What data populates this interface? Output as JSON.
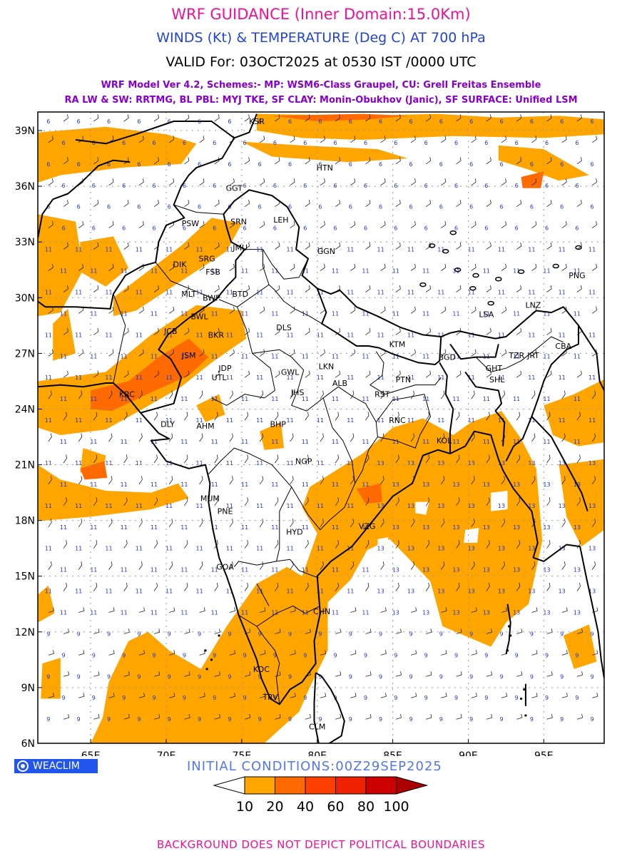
{
  "header": {
    "title": "WRF GUIDANCE (Inner Domain:15.0Km)",
    "subtitle": "WINDS (Kt) & TEMPERATURE (Deg C) AT 700 hPa",
    "valid": "VALID For: 03OCT2025 at 0530 IST /0000 UTC",
    "model_info": "WRF Model Ver 4.2, Schemes:- MP: WSM6-Class Graupel, CU: Grell Freitas Ensemble",
    "scheme_info": "RA LW & SW: RRTMG, BL PBL: MYJ TKE, SF CLAY: Monin-Obukhov (Janic), SF SURFACE: Unified LSM"
  },
  "colors": {
    "title": "#ee1199",
    "subtitle": "#2244dd",
    "meta": "#8800cc",
    "initcond": "#5577ee",
    "logo_bg": "#2255ee",
    "ocean_label": "#2233cc",
    "grid": "#999999"
  },
  "map": {
    "lon_ticks": [
      "65E",
      "70E",
      "75E",
      "80E",
      "85E",
      "90E",
      "95E"
    ],
    "lat_ticks": [
      "39N",
      "36N",
      "33N",
      "30N",
      "27N",
      "24N",
      "21N",
      "18N",
      "15N",
      "12N",
      "9N",
      "6N"
    ],
    "lon_range": [
      61.5,
      99.0
    ],
    "lat_range": [
      6.0,
      40.0
    ],
    "stations": [
      {
        "code": "KSR",
        "lon": 76.0,
        "lat": 39.5
      },
      {
        "code": "HTN",
        "lon": 80.5,
        "lat": 37.0
      },
      {
        "code": "GGT",
        "lon": 74.5,
        "lat": 35.9
      },
      {
        "code": "LEH",
        "lon": 77.6,
        "lat": 34.2
      },
      {
        "code": "PSW",
        "lon": 71.6,
        "lat": 34.0
      },
      {
        "code": "SRN",
        "lon": 74.8,
        "lat": 34.1
      },
      {
        "code": "JMU",
        "lon": 74.9,
        "lat": 32.7
      },
      {
        "code": "GGN",
        "lon": 80.6,
        "lat": 32.5
      },
      {
        "code": "DIK",
        "lon": 70.9,
        "lat": 31.8
      },
      {
        "code": "SRG",
        "lon": 72.7,
        "lat": 32.1
      },
      {
        "code": "FSB",
        "lon": 73.1,
        "lat": 31.4
      },
      {
        "code": "PNG",
        "lon": 97.2,
        "lat": 31.2
      },
      {
        "code": "MLT",
        "lon": 71.5,
        "lat": 30.2
      },
      {
        "code": "BWP",
        "lon": 73.0,
        "lat": 30.0
      },
      {
        "code": "BTD",
        "lon": 74.9,
        "lat": 30.2
      },
      {
        "code": "LNZ",
        "lon": 94.3,
        "lat": 29.6
      },
      {
        "code": "LSA",
        "lon": 91.2,
        "lat": 29.1
      },
      {
        "code": "BWL",
        "lon": 72.2,
        "lat": 29.0
      },
      {
        "code": "DLS",
        "lon": 77.8,
        "lat": 28.4
      },
      {
        "code": "JCB",
        "lon": 70.3,
        "lat": 28.2
      },
      {
        "code": "BKR",
        "lon": 73.3,
        "lat": 28.0
      },
      {
        "code": "KTM",
        "lon": 85.3,
        "lat": 27.5
      },
      {
        "code": "CBA",
        "lon": 96.3,
        "lat": 27.4
      },
      {
        "code": "JSM",
        "lon": 71.5,
        "lat": 26.9
      },
      {
        "code": "BGD",
        "lon": 88.6,
        "lat": 26.8
      },
      {
        "code": "TZR",
        "lon": 93.2,
        "lat": 26.9
      },
      {
        "code": "JRT",
        "lon": 94.3,
        "lat": 26.9
      },
      {
        "code": "LKN",
        "lon": 80.6,
        "lat": 26.3
      },
      {
        "code": "JDP",
        "lon": 73.9,
        "lat": 26.2
      },
      {
        "code": "GHT",
        "lon": 91.7,
        "lat": 26.2
      },
      {
        "code": "SHL",
        "lon": 91.9,
        "lat": 25.6
      },
      {
        "code": "GWL",
        "lon": 78.2,
        "lat": 26.0
      },
      {
        "code": "UTL",
        "lon": 73.5,
        "lat": 25.7
      },
      {
        "code": "ALB",
        "lon": 81.5,
        "lat": 25.4
      },
      {
        "code": "PTN",
        "lon": 85.7,
        "lat": 25.6
      },
      {
        "code": "KRC",
        "lon": 67.4,
        "lat": 24.8
      },
      {
        "code": "JHS",
        "lon": 78.7,
        "lat": 24.9
      },
      {
        "code": "RST",
        "lon": 84.3,
        "lat": 24.8
      },
      {
        "code": "AHM",
        "lon": 72.6,
        "lat": 23.1
      },
      {
        "code": "BHP",
        "lon": 77.4,
        "lat": 23.2
      },
      {
        "code": "RNC",
        "lon": 85.3,
        "lat": 23.4
      },
      {
        "code": "DLY",
        "lon": 70.1,
        "lat": 23.2
      },
      {
        "code": "KOL",
        "lon": 88.4,
        "lat": 22.3
      },
      {
        "code": "NGP",
        "lon": 79.1,
        "lat": 21.2
      },
      {
        "code": "MUM",
        "lon": 72.9,
        "lat": 19.2
      },
      {
        "code": "PNE",
        "lon": 73.9,
        "lat": 18.5
      },
      {
        "code": "HYD",
        "lon": 78.5,
        "lat": 17.4
      },
      {
        "code": "VZG",
        "lon": 83.3,
        "lat": 17.7
      },
      {
        "code": "GOA",
        "lon": 73.9,
        "lat": 15.5
      },
      {
        "code": "CHN",
        "lon": 80.3,
        "lat": 13.1
      },
      {
        "code": "KOC",
        "lon": 76.3,
        "lat": 10.0
      },
      {
        "code": "TRV",
        "lon": 76.9,
        "lat": 8.5
      },
      {
        "code": "CLM",
        "lon": 80.0,
        "lat": 6.9
      }
    ],
    "temperature_band": "10-20"
  },
  "footer": {
    "logo_text": "WEACLIM",
    "init": "INITIAL CONDITIONS:00Z29SEP2025",
    "disclaimer": "BACKGROUND DOES NOT DEPICT POLITICAL BOUNDARIES"
  },
  "colorbar": {
    "labels": [
      "10",
      "20",
      "40",
      "60",
      "80",
      "100"
    ],
    "colors": [
      "#ffffff",
      "#ffa500",
      "#ff6a00",
      "#ff4000",
      "#ee2200",
      "#cc0000",
      "#aa0000"
    ]
  },
  "wind_values": {
    "north": "6",
    "mid": "11",
    "east": "13",
    "south": "9"
  }
}
